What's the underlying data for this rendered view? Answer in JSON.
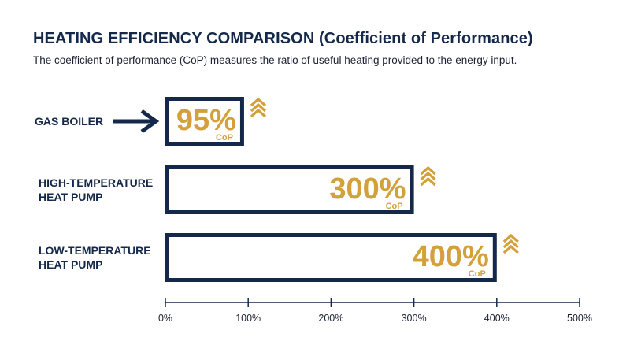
{
  "chart_data": {
    "type": "bar",
    "orientation": "horizontal",
    "title": "HEATING EFFICIENCY COMPARISON (Coefficient of Performance)",
    "subtitle": "The coefficient of performance (CoP) measures the ratio of useful heating provided to the energy input.",
    "categories": [
      [
        "GAS BOILER"
      ],
      [
        "HIGH-TEMPERATURE",
        "HEAT PUMP"
      ],
      [
        "LOW-TEMPERATURE",
        "HEAT PUMP"
      ]
    ],
    "values": [
      95,
      300,
      400
    ],
    "value_labels": [
      "95%",
      "300%",
      "400%"
    ],
    "value_unit_label": "CoP",
    "xlim": [
      0,
      500
    ],
    "xticks": [
      0,
      100,
      200,
      300,
      400,
      500
    ],
    "xtick_labels": [
      "0%",
      "100%",
      "200%",
      "300%",
      "400%",
      "500%"
    ],
    "grid": false,
    "legend": "none",
    "highlighted_category": "GAS BOILER",
    "highlight_marker": "arrow-right-icon",
    "bar_end_marker": "double-chevron-up-icon",
    "colors": {
      "primary": "#14294a",
      "accent": "#d4a03c",
      "bar_fill": "#ffffff"
    }
  }
}
